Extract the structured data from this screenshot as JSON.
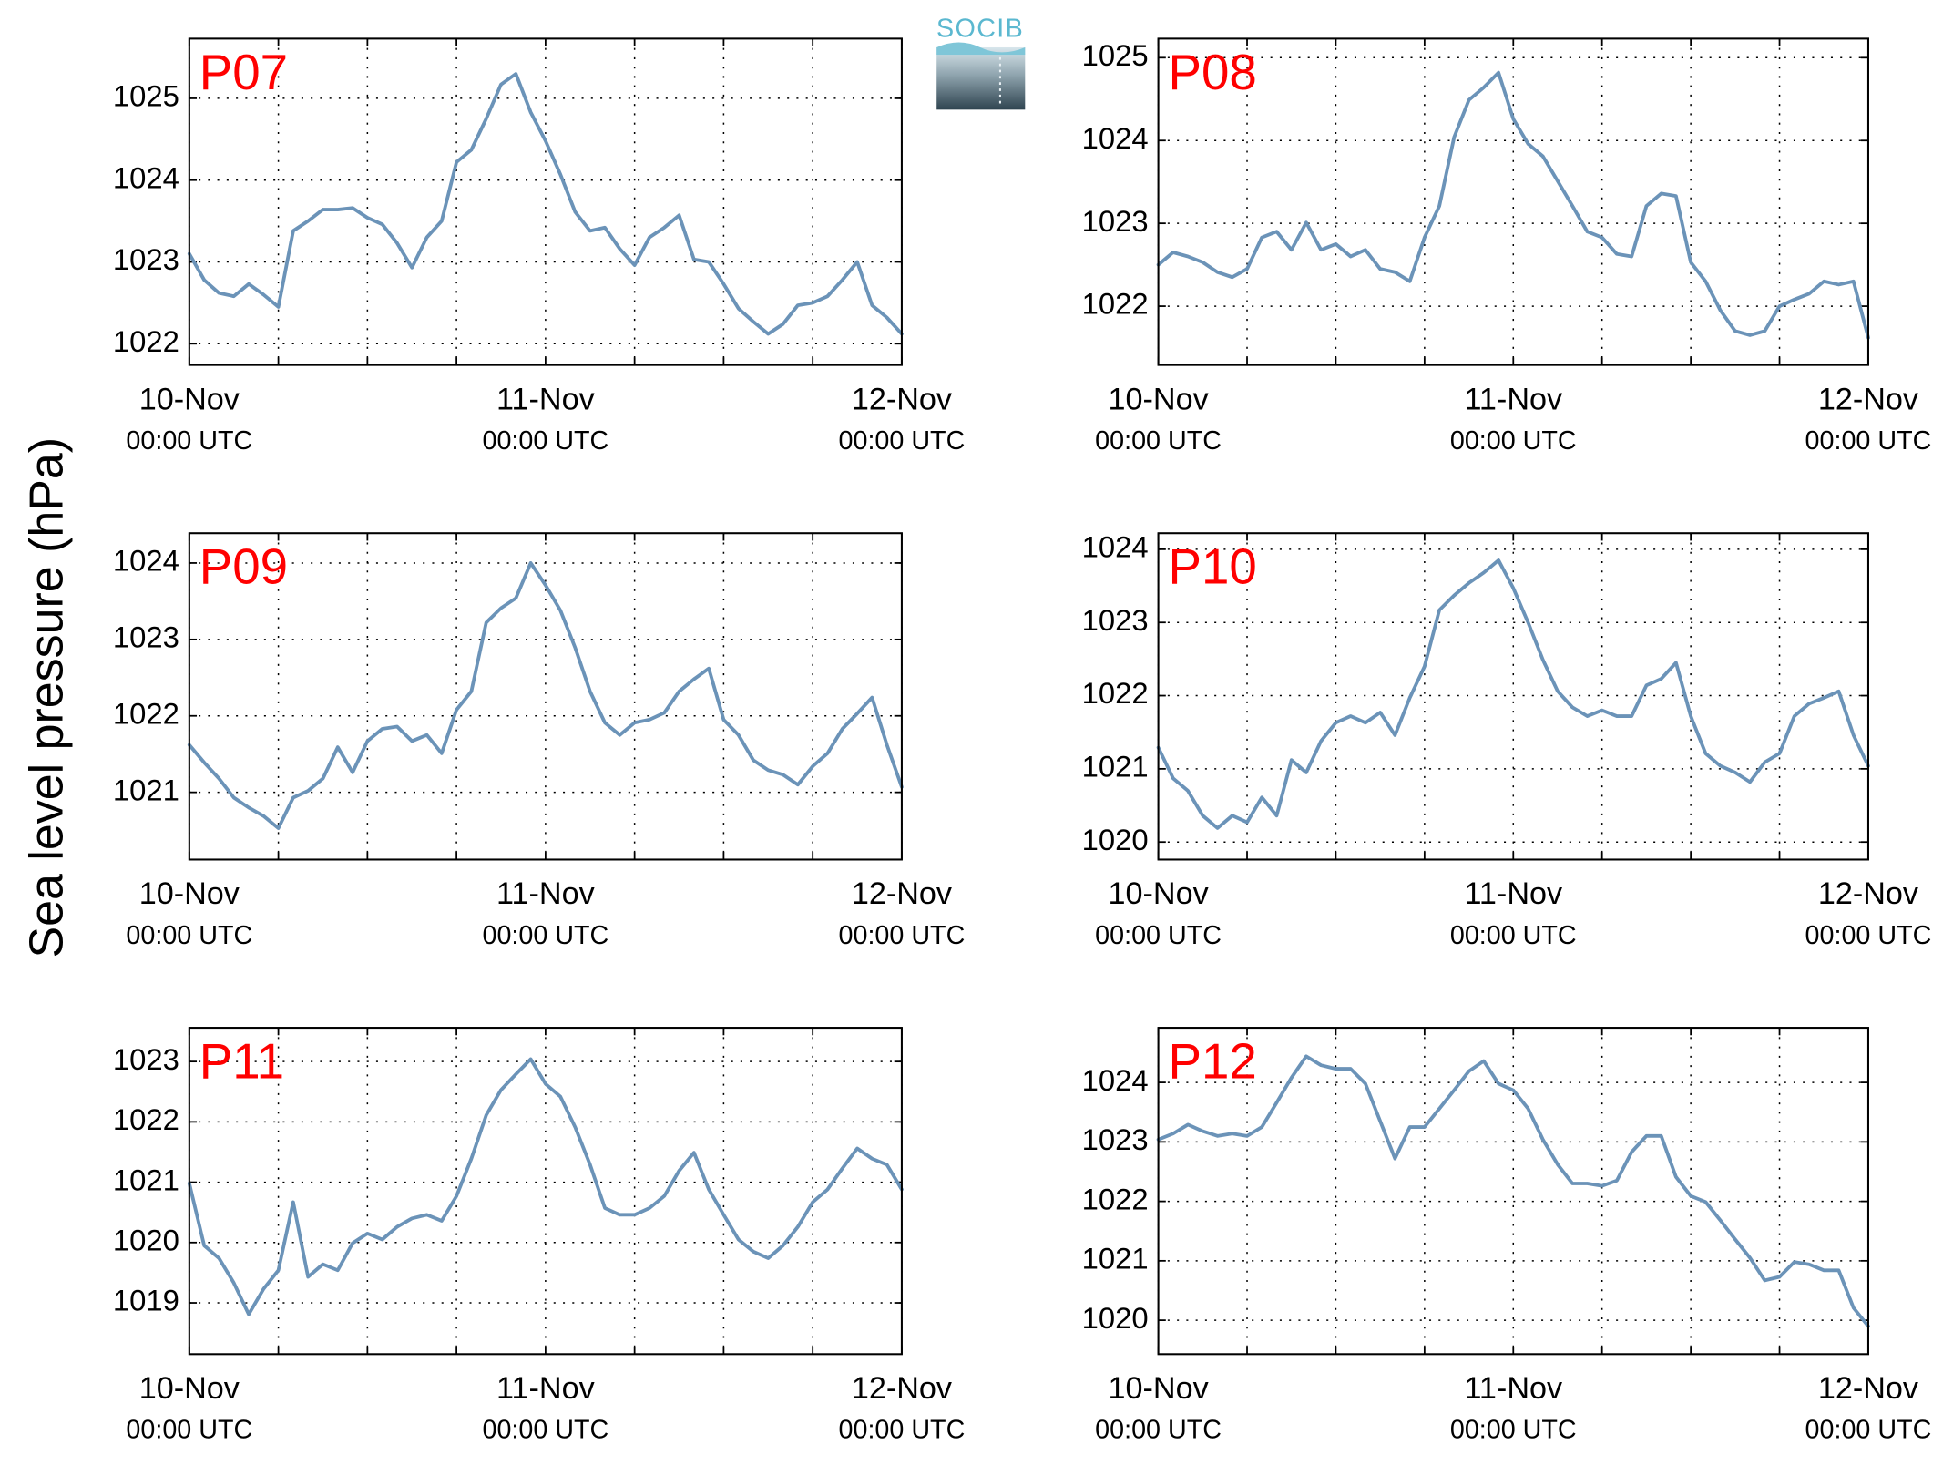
{
  "ylabel": "Sea level pressure (hPa)",
  "logo": "SOCIB",
  "chart_data": [
    {
      "type": "line",
      "title": "P07",
      "title_color": "#ff0000",
      "x": [
        "10-Nov 00:00",
        "10-Nov 01:00",
        "10-Nov 02:00",
        "10-Nov 03:00",
        "10-Nov 04:00",
        "10-Nov 05:00",
        "10-Nov 06:00",
        "10-Nov 07:00",
        "10-Nov 08:00",
        "10-Nov 09:00",
        "10-Nov 10:00",
        "10-Nov 11:00",
        "10-Nov 12:00",
        "10-Nov 13:00",
        "10-Nov 14:00",
        "10-Nov 15:00",
        "10-Nov 16:00",
        "10-Nov 17:00",
        "10-Nov 18:00",
        "10-Nov 19:00",
        "10-Nov 20:00",
        "10-Nov 21:00",
        "10-Nov 22:00",
        "10-Nov 23:00",
        "11-Nov 00:00",
        "11-Nov 01:00",
        "11-Nov 02:00",
        "11-Nov 03:00",
        "11-Nov 04:00",
        "11-Nov 05:00",
        "11-Nov 06:00",
        "11-Nov 07:00",
        "11-Nov 08:00",
        "11-Nov 09:00",
        "11-Nov 10:00",
        "11-Nov 11:00",
        "11-Nov 12:00",
        "11-Nov 13:00",
        "11-Nov 14:00",
        "11-Nov 15:00",
        "11-Nov 16:00",
        "11-Nov 17:00",
        "11-Nov 18:00",
        "11-Nov 19:00",
        "11-Nov 20:00",
        "11-Nov 21:00",
        "11-Nov 22:00",
        "11-Nov 23:00",
        "12-Nov 00:00"
      ],
      "series": [
        {
          "color": "#6b93b8",
          "values": [
            1023.1,
            1022.78,
            1022.62,
            1022.58,
            1022.73,
            1022.6,
            1022.45,
            1023.38,
            1023.5,
            1023.64,
            1023.64,
            1023.66,
            1023.54,
            1023.46,
            1023.23,
            1022.93,
            1023.3,
            1023.5,
            1024.22,
            1024.37,
            1024.75,
            1025.17,
            1025.3,
            1024.83,
            1024.48,
            1024.07,
            1023.61,
            1023.38,
            1023.42,
            1023.16,
            1022.96,
            1023.3,
            1023.42,
            1023.57,
            1023.03,
            1023.0,
            1022.73,
            1022.43,
            1022.27,
            1022.12,
            1022.24,
            1022.47,
            1022.5,
            1022.58,
            1022.78,
            1023.0,
            1022.47,
            1022.32,
            1022.12
          ]
        }
      ],
      "xlim": [
        "10-Nov 00:00",
        "12-Nov 00:00"
      ],
      "xticks": [
        {
          "value": "10-Nov 00:00",
          "label": [
            "10-Nov",
            "00:00 UTC"
          ]
        },
        {
          "value": "11-Nov 00:00",
          "label": [
            "11-Nov",
            "00:00 UTC"
          ]
        },
        {
          "value": "12-Nov 00:00",
          "label": [
            "12-Nov",
            "00:00 UTC"
          ]
        }
      ],
      "xminor_ticks": [
        "10-Nov 06:00",
        "10-Nov 12:00",
        "10-Nov 18:00",
        "11-Nov 06:00",
        "11-Nov 12:00",
        "11-Nov 18:00"
      ],
      "ylim": [
        1021.74,
        1025.73
      ],
      "yticks": [
        1022,
        1023,
        1024,
        1025
      ],
      "grid": true
    },
    {
      "type": "line",
      "title": "P08",
      "title_color": "#ff0000",
      "x": [
        "10-Nov 00:00",
        "10-Nov 01:00",
        "10-Nov 02:00",
        "10-Nov 03:00",
        "10-Nov 04:00",
        "10-Nov 05:00",
        "10-Nov 06:00",
        "10-Nov 07:00",
        "10-Nov 08:00",
        "10-Nov 09:00",
        "10-Nov 10:00",
        "10-Nov 11:00",
        "10-Nov 12:00",
        "10-Nov 13:00",
        "10-Nov 14:00",
        "10-Nov 15:00",
        "10-Nov 16:00",
        "10-Nov 17:00",
        "10-Nov 18:00",
        "10-Nov 19:00",
        "10-Nov 20:00",
        "10-Nov 21:00",
        "10-Nov 22:00",
        "10-Nov 23:00",
        "11-Nov 00:00",
        "11-Nov 01:00",
        "11-Nov 02:00",
        "11-Nov 03:00",
        "11-Nov 04:00",
        "11-Nov 05:00",
        "11-Nov 06:00",
        "11-Nov 07:00",
        "11-Nov 08:00",
        "11-Nov 09:00",
        "11-Nov 10:00",
        "11-Nov 11:00",
        "11-Nov 12:00",
        "11-Nov 13:00",
        "11-Nov 14:00",
        "11-Nov 15:00",
        "11-Nov 16:00",
        "11-Nov 17:00",
        "11-Nov 18:00",
        "11-Nov 19:00",
        "11-Nov 20:00",
        "11-Nov 21:00",
        "11-Nov 22:00",
        "11-Nov 23:00",
        "12-Nov 00:00"
      ],
      "series": [
        {
          "color": "#6b93b8",
          "values": [
            1022.5,
            1022.65,
            1022.6,
            1022.53,
            1022.41,
            1022.35,
            1022.45,
            1022.83,
            1022.9,
            1022.68,
            1023.01,
            1022.68,
            1022.75,
            1022.6,
            1022.68,
            1022.45,
            1022.41,
            1022.3,
            1022.83,
            1023.21,
            1024.04,
            1024.49,
            1024.64,
            1024.82,
            1024.26,
            1023.96,
            1023.81,
            1023.51,
            1023.21,
            1022.9,
            1022.83,
            1022.63,
            1022.6,
            1023.21,
            1023.36,
            1023.33,
            1022.53,
            1022.3,
            1021.95,
            1021.7,
            1021.65,
            1021.7,
            1022.0,
            1022.08,
            1022.15,
            1022.3,
            1022.26,
            1022.3,
            1021.62
          ]
        }
      ],
      "xlim": [
        "10-Nov 00:00",
        "12-Nov 00:00"
      ],
      "xticks": [
        {
          "value": "10-Nov 00:00",
          "label": [
            "10-Nov",
            "00:00 UTC"
          ]
        },
        {
          "value": "11-Nov 00:00",
          "label": [
            "11-Nov",
            "00:00 UTC"
          ]
        },
        {
          "value": "12-Nov 00:00",
          "label": [
            "12-Nov",
            "00:00 UTC"
          ]
        }
      ],
      "xminor_ticks": [
        "10-Nov 06:00",
        "10-Nov 12:00",
        "10-Nov 18:00",
        "11-Nov 06:00",
        "11-Nov 12:00",
        "11-Nov 18:00"
      ],
      "ylim": [
        1021.29,
        1025.23
      ],
      "yticks": [
        1022,
        1023,
        1024,
        1025
      ],
      "grid": true
    },
    {
      "type": "line",
      "title": "P09",
      "title_color": "#ff0000",
      "x": [
        "10-Nov 00:00",
        "10-Nov 01:00",
        "10-Nov 02:00",
        "10-Nov 03:00",
        "10-Nov 04:00",
        "10-Nov 05:00",
        "10-Nov 06:00",
        "10-Nov 07:00",
        "10-Nov 08:00",
        "10-Nov 09:00",
        "10-Nov 10:00",
        "10-Nov 11:00",
        "10-Nov 12:00",
        "10-Nov 13:00",
        "10-Nov 14:00",
        "10-Nov 15:00",
        "10-Nov 16:00",
        "10-Nov 17:00",
        "10-Nov 18:00",
        "10-Nov 19:00",
        "10-Nov 20:00",
        "10-Nov 21:00",
        "10-Nov 22:00",
        "10-Nov 23:00",
        "11-Nov 00:00",
        "11-Nov 01:00",
        "11-Nov 02:00",
        "11-Nov 03:00",
        "11-Nov 04:00",
        "11-Nov 05:00",
        "11-Nov 06:00",
        "11-Nov 07:00",
        "11-Nov 08:00",
        "11-Nov 09:00",
        "11-Nov 10:00",
        "11-Nov 11:00",
        "11-Nov 12:00",
        "11-Nov 13:00",
        "11-Nov 14:00",
        "11-Nov 15:00",
        "11-Nov 16:00",
        "11-Nov 17:00",
        "11-Nov 18:00",
        "11-Nov 19:00",
        "11-Nov 20:00",
        "11-Nov 21:00",
        "11-Nov 22:00",
        "11-Nov 23:00",
        "12-Nov 00:00"
      ],
      "series": [
        {
          "color": "#6b93b8",
          "values": [
            1021.62,
            1021.39,
            1021.18,
            1020.93,
            1020.8,
            1020.69,
            1020.53,
            1020.93,
            1021.02,
            1021.18,
            1021.59,
            1021.26,
            1021.67,
            1021.83,
            1021.86,
            1021.67,
            1021.75,
            1021.51,
            1022.08,
            1022.32,
            1023.22,
            1023.41,
            1023.54,
            1024.0,
            1023.71,
            1023.38,
            1022.89,
            1022.32,
            1021.91,
            1021.75,
            1021.91,
            1021.95,
            1022.04,
            1022.32,
            1022.48,
            1022.62,
            1021.95,
            1021.75,
            1021.42,
            1021.29,
            1021.23,
            1021.1,
            1021.34,
            1021.51,
            1021.83,
            1022.03,
            1022.24,
            1021.62,
            1021.07
          ]
        }
      ],
      "xlim": [
        "10-Nov 00:00",
        "12-Nov 00:00"
      ],
      "xticks": [
        {
          "value": "10-Nov 00:00",
          "label": [
            "10-Nov",
            "00:00 UTC"
          ]
        },
        {
          "value": "11-Nov 00:00",
          "label": [
            "11-Nov",
            "00:00 UTC"
          ]
        },
        {
          "value": "12-Nov 00:00",
          "label": [
            "12-Nov",
            "00:00 UTC"
          ]
        }
      ],
      "xminor_ticks": [
        "10-Nov 06:00",
        "10-Nov 12:00",
        "10-Nov 18:00",
        "11-Nov 06:00",
        "11-Nov 12:00",
        "11-Nov 18:00"
      ],
      "ylim": [
        1020.12,
        1024.39
      ],
      "yticks": [
        1021,
        1022,
        1023,
        1024
      ],
      "grid": true
    },
    {
      "type": "line",
      "title": "P10",
      "title_color": "#ff0000",
      "x": [
        "10-Nov 00:00",
        "10-Nov 01:00",
        "10-Nov 02:00",
        "10-Nov 03:00",
        "10-Nov 04:00",
        "10-Nov 05:00",
        "10-Nov 06:00",
        "10-Nov 07:00",
        "10-Nov 08:00",
        "10-Nov 09:00",
        "10-Nov 10:00",
        "10-Nov 11:00",
        "10-Nov 12:00",
        "10-Nov 13:00",
        "10-Nov 14:00",
        "10-Nov 15:00",
        "10-Nov 16:00",
        "10-Nov 17:00",
        "10-Nov 18:00",
        "10-Nov 19:00",
        "10-Nov 20:00",
        "10-Nov 21:00",
        "10-Nov 22:00",
        "10-Nov 23:00",
        "11-Nov 00:00",
        "11-Nov 01:00",
        "11-Nov 02:00",
        "11-Nov 03:00",
        "11-Nov 04:00",
        "11-Nov 05:00",
        "11-Nov 06:00",
        "11-Nov 07:00",
        "11-Nov 08:00",
        "11-Nov 09:00",
        "11-Nov 10:00",
        "11-Nov 11:00",
        "11-Nov 12:00",
        "11-Nov 13:00",
        "11-Nov 14:00",
        "11-Nov 15:00",
        "11-Nov 16:00",
        "11-Nov 17:00",
        "11-Nov 18:00",
        "11-Nov 19:00",
        "11-Nov 20:00",
        "11-Nov 21:00",
        "11-Nov 22:00",
        "11-Nov 23:00",
        "12-Nov 00:00"
      ],
      "series": [
        {
          "color": "#6b93b8",
          "values": [
            1021.29,
            1020.87,
            1020.7,
            1020.36,
            1020.19,
            1020.36,
            1020.27,
            1020.61,
            1020.36,
            1021.12,
            1020.95,
            1021.38,
            1021.63,
            1021.72,
            1021.63,
            1021.77,
            1021.46,
            1021.97,
            1022.4,
            1023.17,
            1023.37,
            1023.54,
            1023.68,
            1023.85,
            1023.47,
            1023.0,
            1022.49,
            1022.06,
            1021.84,
            1021.72,
            1021.8,
            1021.72,
            1021.72,
            1022.14,
            1022.23,
            1022.45,
            1021.72,
            1021.21,
            1021.04,
            1020.95,
            1020.82,
            1021.09,
            1021.21,
            1021.72,
            1021.89,
            1021.97,
            1022.06,
            1021.46,
            1021.04
          ]
        }
      ],
      "xlim": [
        "10-Nov 00:00",
        "12-Nov 00:00"
      ],
      "xticks": [
        {
          "value": "10-Nov 00:00",
          "label": [
            "10-Nov",
            "00:00 UTC"
          ]
        },
        {
          "value": "11-Nov 00:00",
          "label": [
            "11-Nov",
            "00:00 UTC"
          ]
        },
        {
          "value": "12-Nov 00:00",
          "label": [
            "12-Nov",
            "00:00 UTC"
          ]
        }
      ],
      "xminor_ticks": [
        "10-Nov 06:00",
        "10-Nov 12:00",
        "10-Nov 18:00",
        "11-Nov 06:00",
        "11-Nov 12:00",
        "11-Nov 18:00"
      ],
      "ylim": [
        1019.76,
        1024.22
      ],
      "yticks": [
        1020,
        1021,
        1022,
        1023,
        1024
      ],
      "grid": true
    },
    {
      "type": "line",
      "title": "P11",
      "title_color": "#ff0000",
      "x": [
        "10-Nov 00:00",
        "10-Nov 01:00",
        "10-Nov 02:00",
        "10-Nov 03:00",
        "10-Nov 04:00",
        "10-Nov 05:00",
        "10-Nov 06:00",
        "10-Nov 07:00",
        "10-Nov 08:00",
        "10-Nov 09:00",
        "10-Nov 10:00",
        "10-Nov 11:00",
        "10-Nov 12:00",
        "10-Nov 13:00",
        "10-Nov 14:00",
        "10-Nov 15:00",
        "10-Nov 16:00",
        "10-Nov 17:00",
        "10-Nov 18:00",
        "10-Nov 19:00",
        "10-Nov 20:00",
        "10-Nov 21:00",
        "10-Nov 22:00",
        "10-Nov 23:00",
        "11-Nov 00:00",
        "11-Nov 01:00",
        "11-Nov 02:00",
        "11-Nov 03:00",
        "11-Nov 04:00",
        "11-Nov 05:00",
        "11-Nov 06:00",
        "11-Nov 07:00",
        "11-Nov 08:00",
        "11-Nov 09:00",
        "11-Nov 10:00",
        "11-Nov 11:00",
        "11-Nov 12:00",
        "11-Nov 13:00",
        "11-Nov 14:00",
        "11-Nov 15:00",
        "11-Nov 16:00",
        "11-Nov 17:00",
        "11-Nov 18:00",
        "11-Nov 19:00",
        "11-Nov 20:00",
        "11-Nov 21:00",
        "11-Nov 22:00",
        "11-Nov 23:00",
        "12-Nov 00:00"
      ],
      "series": [
        {
          "color": "#6b93b8",
          "values": [
            1020.98,
            1019.95,
            1019.74,
            1019.33,
            1018.81,
            1019.23,
            1019.54,
            1020.67,
            1019.43,
            1019.64,
            1019.54,
            1019.99,
            1020.15,
            1020.05,
            1020.26,
            1020.4,
            1020.46,
            1020.36,
            1020.77,
            1021.39,
            1022.11,
            1022.53,
            1022.79,
            1023.04,
            1022.63,
            1022.42,
            1021.91,
            1021.29,
            1020.57,
            1020.46,
            1020.46,
            1020.57,
            1020.77,
            1021.19,
            1021.49,
            1020.88,
            1020.46,
            1020.05,
            1019.85,
            1019.74,
            1019.95,
            1020.26,
            1020.67,
            1020.88,
            1021.23,
            1021.56,
            1021.39,
            1021.29,
            1020.88
          ]
        }
      ],
      "xlim": [
        "10-Nov 00:00",
        "12-Nov 00:00"
      ],
      "xticks": [
        {
          "value": "10-Nov 00:00",
          "label": [
            "10-Nov",
            "00:00 UTC"
          ]
        },
        {
          "value": "11-Nov 00:00",
          "label": [
            "11-Nov",
            "00:00 UTC"
          ]
        },
        {
          "value": "12-Nov 00:00",
          "label": [
            "12-Nov",
            "00:00 UTC"
          ]
        }
      ],
      "xminor_ticks": [
        "10-Nov 06:00",
        "10-Nov 12:00",
        "10-Nov 18:00",
        "11-Nov 06:00",
        "11-Nov 12:00",
        "11-Nov 18:00"
      ],
      "ylim": [
        1018.15,
        1023.56
      ],
      "yticks": [
        1019,
        1020,
        1021,
        1022,
        1023
      ],
      "grid": true
    },
    {
      "type": "line",
      "title": "P12",
      "title_color": "#ff0000",
      "x": [
        "10-Nov 00:00",
        "10-Nov 01:00",
        "10-Nov 02:00",
        "10-Nov 03:00",
        "10-Nov 04:00",
        "10-Nov 05:00",
        "10-Nov 06:00",
        "10-Nov 07:00",
        "10-Nov 08:00",
        "10-Nov 09:00",
        "10-Nov 10:00",
        "10-Nov 11:00",
        "10-Nov 12:00",
        "10-Nov 13:00",
        "10-Nov 14:00",
        "10-Nov 15:00",
        "10-Nov 16:00",
        "10-Nov 17:00",
        "10-Nov 18:00",
        "10-Nov 19:00",
        "10-Nov 20:00",
        "10-Nov 21:00",
        "10-Nov 22:00",
        "10-Nov 23:00",
        "11-Nov 00:00",
        "11-Nov 01:00",
        "11-Nov 02:00",
        "11-Nov 03:00",
        "11-Nov 04:00",
        "11-Nov 05:00",
        "11-Nov 06:00",
        "11-Nov 07:00",
        "11-Nov 08:00",
        "11-Nov 09:00",
        "11-Nov 10:00",
        "11-Nov 11:00",
        "11-Nov 12:00",
        "11-Nov 13:00",
        "11-Nov 14:00",
        "11-Nov 15:00",
        "11-Nov 16:00",
        "11-Nov 17:00",
        "11-Nov 18:00",
        "11-Nov 19:00",
        "11-Nov 20:00",
        "11-Nov 21:00",
        "11-Nov 22:00",
        "11-Nov 23:00",
        "12-Nov 00:00"
      ],
      "series": [
        {
          "color": "#6b93b8",
          "values": [
            1023.04,
            1023.14,
            1023.29,
            1023.18,
            1023.1,
            1023.14,
            1023.1,
            1023.25,
            1023.66,
            1024.08,
            1024.44,
            1024.29,
            1024.23,
            1024.23,
            1023.98,
            1023.35,
            1022.72,
            1023.25,
            1023.25,
            1023.56,
            1023.87,
            1024.19,
            1024.36,
            1023.98,
            1023.87,
            1023.56,
            1023.04,
            1022.62,
            1022.3,
            1022.3,
            1022.26,
            1022.35,
            1022.83,
            1023.1,
            1023.1,
            1022.41,
            1022.09,
            1021.99,
            1021.68,
            1021.36,
            1021.05,
            1020.67,
            1020.73,
            1020.98,
            1020.94,
            1020.84,
            1020.84,
            1020.21,
            1019.9
          ]
        }
      ],
      "xlim": [
        "10-Nov 00:00",
        "12-Nov 00:00"
      ],
      "xticks": [
        {
          "value": "10-Nov 00:00",
          "label": [
            "10-Nov",
            "00:00 UTC"
          ]
        },
        {
          "value": "11-Nov 00:00",
          "label": [
            "11-Nov",
            "00:00 UTC"
          ]
        },
        {
          "value": "12-Nov 00:00",
          "label": [
            "12-Nov",
            "00:00 UTC"
          ]
        }
      ],
      "xminor_ticks": [
        "10-Nov 06:00",
        "10-Nov 12:00",
        "10-Nov 18:00",
        "11-Nov 06:00",
        "11-Nov 12:00",
        "11-Nov 18:00"
      ],
      "ylim": [
        1019.43,
        1024.92
      ],
      "yticks": [
        1020,
        1021,
        1022,
        1023,
        1024
      ],
      "grid": true
    }
  ]
}
